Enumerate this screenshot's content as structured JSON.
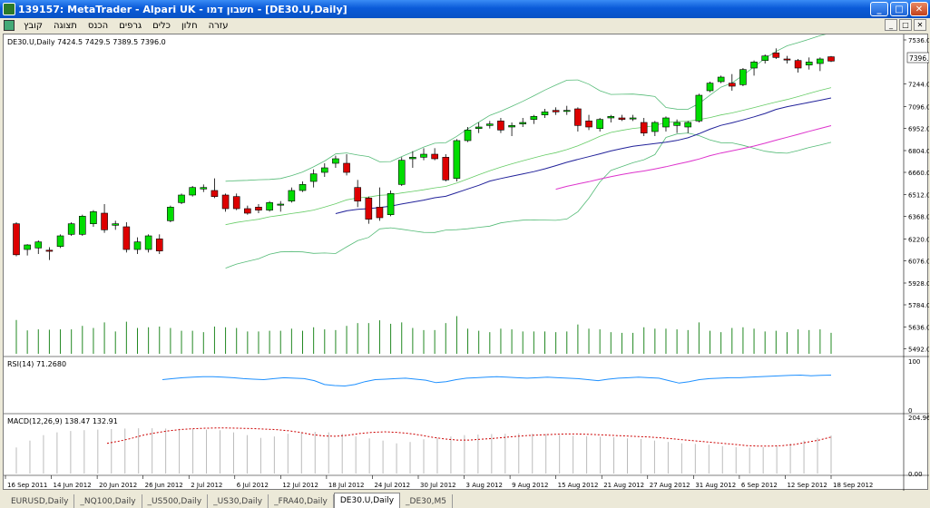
{
  "window": {
    "title": "139157: MetaTrader - Alpari UK - חשבון דמו - [DE30.U,Daily]",
    "minimize_glyph": "_",
    "maximize_glyph": "□",
    "close_glyph": "✕"
  },
  "menu": {
    "items": [
      "קובץ",
      "תצוגה",
      "הכנס",
      "גרפים",
      "כלים",
      "חלון",
      "עזרה"
    ]
  },
  "chart": {
    "info_label": "DE30.U,Daily  7424.5 7429.5 7389.5 7396.0",
    "current_price_label": "7396.0",
    "rsi_label": "RSI(14) 71.2680",
    "macd_label": "MACD(12,26,9) 138.47 132.91"
  },
  "tabs": {
    "items": [
      "EURUSD,Daily",
      "_NQ100,Daily",
      "_US500,Daily",
      "_US30,Daily",
      "_FRA40,Daily",
      "DE30.U,Daily",
      "_DE30,M5"
    ],
    "active_index": 5
  },
  "chart_data": [
    {
      "type": "candlestick",
      "title": "DE30.U,Daily",
      "price_axis_ticks": [
        "7536.0",
        "7244.0",
        "7096.0",
        "6952.0",
        "6804.0",
        "6660.0",
        "6512.0",
        "6368.0",
        "6220.0",
        "6076.0",
        "5928.0",
        "5784.0",
        "5636.0",
        "5492.0"
      ],
      "ylim": [
        5460,
        7560
      ],
      "x_tick_labels": [
        "16 Sep 2011",
        "14 Jun 2012",
        "20 Jun 2012",
        "26 Jun 2012",
        "2 Jul 2012",
        "6 Jul 2012",
        "12 Jul 2012",
        "18 Jul 2012",
        "24 Jul 2012",
        "30 Jul 2012",
        "3 Aug 2012",
        "9 Aug 2012",
        "15 Aug 2012",
        "21 Aug 2012",
        "27 Aug 2012",
        "31 Aug 2012",
        "6 Sep 2012",
        "12 Sep 2012",
        "18 Sep 2012"
      ],
      "candles": [
        {
          "o": 6320,
          "h": 6330,
          "l": 6105,
          "c": 6115
        },
        {
          "o": 6150,
          "h": 6185,
          "l": 6110,
          "c": 6180
        },
        {
          "o": 6160,
          "h": 6210,
          "l": 6120,
          "c": 6200
        },
        {
          "o": 6145,
          "h": 6165,
          "l": 6080,
          "c": 6140
        },
        {
          "o": 6170,
          "h": 6250,
          "l": 6160,
          "c": 6240
        },
        {
          "o": 6250,
          "h": 6330,
          "l": 6240,
          "c": 6320
        },
        {
          "o": 6250,
          "h": 6380,
          "l": 6240,
          "c": 6370
        },
        {
          "o": 6320,
          "h": 6410,
          "l": 6300,
          "c": 6400
        },
        {
          "o": 6390,
          "h": 6450,
          "l": 6260,
          "c": 6280
        },
        {
          "o": 6310,
          "h": 6340,
          "l": 6280,
          "c": 6320
        },
        {
          "o": 6300,
          "h": 6330,
          "l": 6130,
          "c": 6150
        },
        {
          "o": 6150,
          "h": 6230,
          "l": 6120,
          "c": 6200
        },
        {
          "o": 6150,
          "h": 6250,
          "l": 6130,
          "c": 6240
        },
        {
          "o": 6220,
          "h": 6250,
          "l": 6120,
          "c": 6140
        },
        {
          "o": 6340,
          "h": 6440,
          "l": 6330,
          "c": 6430
        },
        {
          "o": 6460,
          "h": 6520,
          "l": 6450,
          "c": 6510
        },
        {
          "o": 6510,
          "h": 6570,
          "l": 6500,
          "c": 6560
        },
        {
          "o": 6550,
          "h": 6580,
          "l": 6530,
          "c": 6560
        },
        {
          "o": 6540,
          "h": 6620,
          "l": 6490,
          "c": 6500
        },
        {
          "o": 6510,
          "h": 6520,
          "l": 6400,
          "c": 6420
        },
        {
          "o": 6500,
          "h": 6520,
          "l": 6410,
          "c": 6420
        },
        {
          "o": 6420,
          "h": 6440,
          "l": 6380,
          "c": 6390
        },
        {
          "o": 6430,
          "h": 6450,
          "l": 6390,
          "c": 6410
        },
        {
          "o": 6410,
          "h": 6470,
          "l": 6400,
          "c": 6460
        },
        {
          "o": 6450,
          "h": 6470,
          "l": 6400,
          "c": 6450
        },
        {
          "o": 6470,
          "h": 6560,
          "l": 6460,
          "c": 6540
        },
        {
          "o": 6540,
          "h": 6600,
          "l": 6530,
          "c": 6580
        },
        {
          "o": 6600,
          "h": 6680,
          "l": 6560,
          "c": 6650
        },
        {
          "o": 6660,
          "h": 6720,
          "l": 6630,
          "c": 6690
        },
        {
          "o": 6720,
          "h": 6770,
          "l": 6690,
          "c": 6750
        },
        {
          "o": 6720,
          "h": 6780,
          "l": 6640,
          "c": 6660
        },
        {
          "o": 6560,
          "h": 6610,
          "l": 6430,
          "c": 6470
        },
        {
          "o": 6490,
          "h": 6500,
          "l": 6320,
          "c": 6350
        },
        {
          "o": 6430,
          "h": 6560,
          "l": 6340,
          "c": 6360
        },
        {
          "o": 6380,
          "h": 6540,
          "l": 6370,
          "c": 6520
        },
        {
          "o": 6580,
          "h": 6760,
          "l": 6570,
          "c": 6740
        },
        {
          "o": 6750,
          "h": 6800,
          "l": 6690,
          "c": 6760
        },
        {
          "o": 6760,
          "h": 6820,
          "l": 6740,
          "c": 6780
        },
        {
          "o": 6780,
          "h": 6820,
          "l": 6740,
          "c": 6750
        },
        {
          "o": 6760,
          "h": 6780,
          "l": 6600,
          "c": 6610
        },
        {
          "o": 6620,
          "h": 6880,
          "l": 6600,
          "c": 6870
        },
        {
          "o": 6870,
          "h": 6960,
          "l": 6860,
          "c": 6940
        },
        {
          "o": 6950,
          "h": 6990,
          "l": 6920,
          "c": 6960
        },
        {
          "o": 6970,
          "h": 7000,
          "l": 6950,
          "c": 6980
        },
        {
          "o": 7000,
          "h": 7020,
          "l": 6920,
          "c": 6940
        },
        {
          "o": 6960,
          "h": 6990,
          "l": 6900,
          "c": 6970
        },
        {
          "o": 6980,
          "h": 7020,
          "l": 6960,
          "c": 6990
        },
        {
          "o": 7010,
          "h": 7040,
          "l": 6980,
          "c": 7030
        },
        {
          "o": 7040,
          "h": 7080,
          "l": 7020,
          "c": 7060
        },
        {
          "o": 7070,
          "h": 7090,
          "l": 7040,
          "c": 7060
        },
        {
          "o": 7070,
          "h": 7100,
          "l": 7040,
          "c": 7070
        },
        {
          "o": 7080,
          "h": 7090,
          "l": 6930,
          "c": 6970
        },
        {
          "o": 7000,
          "h": 7040,
          "l": 6940,
          "c": 6960
        },
        {
          "o": 6950,
          "h": 7020,
          "l": 6930,
          "c": 7010
        },
        {
          "o": 7020,
          "h": 7040,
          "l": 6990,
          "c": 7030
        },
        {
          "o": 7020,
          "h": 7040,
          "l": 7000,
          "c": 7010
        },
        {
          "o": 7020,
          "h": 7040,
          "l": 7000,
          "c": 7020
        },
        {
          "o": 6990,
          "h": 7020,
          "l": 6900,
          "c": 6920
        },
        {
          "o": 6930,
          "h": 7000,
          "l": 6900,
          "c": 6990
        },
        {
          "o": 6960,
          "h": 7030,
          "l": 6930,
          "c": 7020
        },
        {
          "o": 6970,
          "h": 7010,
          "l": 6920,
          "c": 6990
        },
        {
          "o": 6960,
          "h": 7000,
          "l": 6920,
          "c": 6990
        },
        {
          "o": 7000,
          "h": 7180,
          "l": 6990,
          "c": 7170
        },
        {
          "o": 7200,
          "h": 7260,
          "l": 7190,
          "c": 7250
        },
        {
          "o": 7260,
          "h": 7300,
          "l": 7250,
          "c": 7290
        },
        {
          "o": 7250,
          "h": 7310,
          "l": 7200,
          "c": 7230
        },
        {
          "o": 7240,
          "h": 7350,
          "l": 7230,
          "c": 7340
        },
        {
          "o": 7350,
          "h": 7400,
          "l": 7300,
          "c": 7390
        },
        {
          "o": 7400,
          "h": 7440,
          "l": 7380,
          "c": 7430
        },
        {
          "o": 7450,
          "h": 7480,
          "l": 7410,
          "c": 7420
        },
        {
          "o": 7410,
          "h": 7430,
          "l": 7380,
          "c": 7405
        },
        {
          "o": 7400,
          "h": 7410,
          "l": 7320,
          "c": 7350
        },
        {
          "o": 7370,
          "h": 7420,
          "l": 7340,
          "c": 7390
        },
        {
          "o": 7380,
          "h": 7420,
          "l": 7330,
          "c": 7410
        },
        {
          "o": 7424.5,
          "h": 7429.5,
          "l": 7389.5,
          "c": 7396
        }
      ]
    },
    {
      "type": "line",
      "title": "RSI(14)",
      "y_tick_labels": [
        "100",
        "0"
      ],
      "ylim": [
        0,
        100
      ],
      "values": [
        62,
        64,
        66,
        67,
        68,
        68,
        67,
        66,
        64,
        63,
        62,
        64,
        66,
        65,
        64,
        60,
        52,
        50,
        49,
        52,
        58,
        62,
        63,
        64,
        65,
        63,
        61,
        56,
        58,
        62,
        65,
        66,
        67,
        68,
        67,
        66,
        65,
        66,
        67,
        66,
        65,
        64,
        62,
        60,
        63,
        65,
        66,
        67,
        66,
        65,
        60,
        55,
        58,
        62,
        64,
        65,
        66,
        66,
        67,
        68,
        69,
        70,
        71,
        71.268,
        70,
        71,
        71.268
      ]
    },
    {
      "type": "bar",
      "title": "MACD(12,26,9)",
      "y_tick_labels": [
        "204.96",
        "0.00"
      ],
      "ylim": [
        0,
        205
      ],
      "values": [
        95,
        120,
        140,
        150,
        155,
        158,
        160,
        162,
        164,
        165,
        165,
        164,
        163,
        162,
        160,
        158,
        150,
        140,
        130,
        135,
        145,
        150,
        152,
        150,
        145,
        135,
        128,
        120,
        110,
        115,
        125,
        130,
        135,
        140,
        142,
        144,
        145,
        146,
        145,
        144,
        140,
        138,
        136,
        134,
        132,
        128,
        126,
        120,
        115,
        110,
        108,
        105,
        100,
        96,
        94,
        96,
        100,
        110,
        120,
        130,
        138.47
      ],
      "signal": [
        110,
        118,
        128,
        140,
        148,
        155,
        160,
        163,
        165,
        166,
        166,
        165,
        164,
        162,
        160,
        156,
        150,
        142,
        137,
        136,
        140,
        146,
        150,
        152,
        150,
        146,
        140,
        132,
        126,
        122,
        122,
        125,
        128,
        132,
        136,
        139,
        141,
        143,
        144,
        144,
        143,
        141,
        139,
        137,
        135,
        133,
        130,
        126,
        122,
        118,
        114,
        110,
        106,
        102,
        100,
        100,
        102,
        106,
        114,
        122,
        132.91
      ]
    }
  ]
}
